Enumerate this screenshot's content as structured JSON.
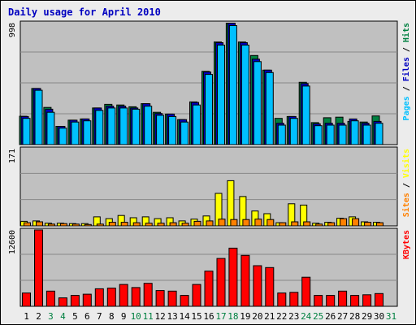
{
  "chart_data": {
    "type": "bar",
    "title": "Daily usage for April 2010",
    "days": [
      "1",
      "2",
      "3",
      "4",
      "5",
      "6",
      "7",
      "8",
      "9",
      "10",
      "11",
      "12",
      "13",
      "14",
      "15",
      "16",
      "17",
      "18",
      "19",
      "20",
      "21",
      "22",
      "23",
      "24",
      "25",
      "26",
      "27",
      "28",
      "29",
      "30",
      "31"
    ],
    "weekend_days": [
      "3",
      "4",
      "10",
      "11",
      "17",
      "18",
      "24",
      "25",
      "31"
    ],
    "colors": {
      "background": "#ececec",
      "frame": "#cccccc",
      "plot": "#c0c0c0",
      "grid": "#888888",
      "title": "#0000c0",
      "weekday_label": "#000000",
      "weekend_label": "#008040",
      "hits": "#008040",
      "files": "#0000c0",
      "pages": "#00c0ff",
      "visits": "#ffff00",
      "sites": "#ff8000",
      "kbytes": "#ff0000"
    },
    "panels": [
      {
        "id": "hits-files-pages",
        "max_label": "998",
        "max": 998,
        "legend": [
          {
            "text": "Pages",
            "color": "#00c0ff"
          },
          {
            "text": " / ",
            "color": "#000000"
          },
          {
            "text": "Files",
            "color": "#0000c0"
          },
          {
            "text": " / ",
            "color": "#000000"
          },
          {
            "text": "Hits",
            "color": "#008040"
          }
        ],
        "series": [
          {
            "name": "Hits",
            "color": "#008040",
            "values": [
              232,
              460,
              305,
              150,
              200,
              210,
              300,
              330,
              325,
              310,
              335,
              265,
              250,
              205,
              350,
              600,
              840,
              995,
              840,
              730,
              610,
              215,
              230,
              510,
              180,
              220,
              225,
              190,
              185,
              235,
              0
            ]
          },
          {
            "name": "Files",
            "color": "#0000c0",
            "values": [
              230,
              460,
              290,
              150,
              200,
              210,
              300,
              315,
              315,
              300,
              335,
              255,
              250,
              205,
              345,
              595,
              835,
              995,
              835,
              700,
              610,
              175,
              230,
              500,
              170,
              175,
              175,
              210,
              175,
              190,
              0
            ]
          },
          {
            "name": "Pages",
            "color": "#00c0ff",
            "values": [
              215,
              445,
              265,
              135,
              185,
              195,
              280,
              300,
              300,
              290,
              315,
              240,
              230,
              185,
              325,
              575,
              815,
              975,
              815,
              680,
              590,
              160,
              215,
              480,
              155,
              160,
              160,
              195,
              160,
              175,
              0
            ]
          }
        ]
      },
      {
        "id": "sites-visits",
        "max_label": "171",
        "max": 171,
        "legend": [
          {
            "text": "Sites",
            "color": "#ff8000"
          },
          {
            "text": " / ",
            "color": "#000000"
          },
          {
            "text": "Visits",
            "color": "#ffff00"
          }
        ],
        "series": [
          {
            "name": "Visits",
            "color": "#ffff00",
            "values": [
              10,
              11,
              6,
              6,
              5,
              5,
              20,
              16,
              23,
              18,
              20,
              16,
              18,
              11,
              15,
              22,
              72,
              100,
              65,
              33,
              27,
              7,
              49,
              46,
              6,
              8,
              17,
              20,
              9,
              8,
              0
            ]
          },
          {
            "name": "Sites",
            "color": "#ff8000",
            "values": [
              7,
              9,
              4,
              5,
              4,
              3,
              4,
              8,
              8,
              7,
              6,
              6,
              7,
              6,
              10,
              11,
              15,
              14,
              14,
              15,
              14,
              7,
              9,
              9,
              4,
              7,
              16,
              16,
              8,
              7,
              0
            ]
          }
        ]
      },
      {
        "id": "kbytes",
        "max_label": "12600",
        "max": 12600,
        "legend": [
          {
            "text": "KBytes",
            "color": "#ff0000"
          }
        ],
        "series": [
          {
            "name": "KBytes",
            "color": "#ff0000",
            "values": [
              2200,
              12600,
              2500,
              1400,
              1800,
              2000,
              2900,
              3000,
              3600,
              3100,
              3800,
              2600,
              2500,
              1800,
              3600,
              5800,
              7900,
              9600,
              8400,
              6700,
              6400,
              2200,
              2300,
              4800,
              1800,
              1800,
              2500,
              1800,
              1900,
              2100,
              0
            ]
          }
        ]
      }
    ]
  }
}
